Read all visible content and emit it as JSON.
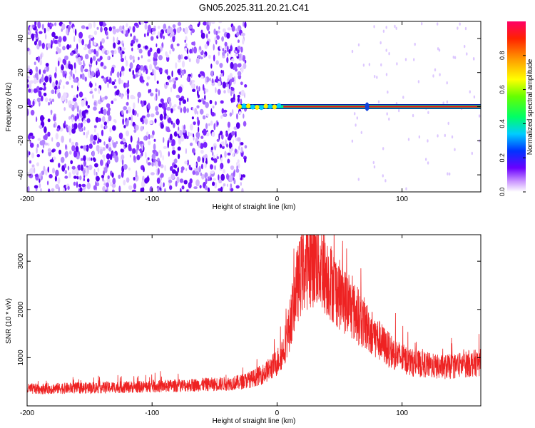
{
  "figure": {
    "title": "GN05.2025.311.20.21.C41"
  },
  "chart_data": [
    {
      "type": "heatmap",
      "xlabel": "Height of straight line (km)",
      "ylabel": "Frequency (Hz)",
      "xlim": [
        -200,
        163
      ],
      "ylim": [
        -50,
        50
      ],
      "xticks": [
        -200,
        -100,
        0,
        100
      ],
      "xtick_labels": [
        "-200",
        "-100",
        "0",
        "100"
      ],
      "yticks": [
        -40,
        -20,
        0,
        20,
        40
      ],
      "ytick_labels": [
        "-40",
        "-20",
        "0",
        "20",
        "40"
      ],
      "grid": false,
      "colorbar": {
        "label": "Normalized spectral amplitude",
        "range": [
          0,
          1
        ],
        "ticks": [
          0.0,
          0.2,
          0.4,
          0.6,
          0.8
        ],
        "tick_labels": [
          "0.0",
          "0.2",
          "0.4",
          "0.6",
          "0.8"
        ]
      },
      "features": [
        {
          "description": "scattered low-amplitude noise",
          "x_range": [
            -200,
            -30
          ],
          "freq_range": [
            -50,
            50
          ],
          "amplitude": 0.15
        },
        {
          "description": "narrow line near 0 Hz",
          "x_range": [
            -30,
            163
          ],
          "freq": 0,
          "amplitude": 0.9
        }
      ]
    },
    {
      "type": "line",
      "xlabel": "Height of straight line (km)",
      "ylabel": "SNR (10 * v/v)",
      "xlim": [
        -200,
        163
      ],
      "ylim": [
        0,
        3550
      ],
      "xticks": [
        -200,
        -100,
        0,
        100
      ],
      "xtick_labels": [
        "-200",
        "-100",
        "0",
        "100"
      ],
      "yticks": [
        1000,
        2000,
        3000
      ],
      "ytick_labels": [
        "1000",
        "2000",
        "3000"
      ],
      "grid": false,
      "series": [
        {
          "color": "#ee2222",
          "x": [
            -200,
            -180,
            -160,
            -140,
            -120,
            -100,
            -80,
            -60,
            -40,
            -30,
            -20,
            -10,
            0,
            5,
            10,
            15,
            20,
            25,
            30,
            35,
            40,
            45,
            50,
            60,
            70,
            80,
            90,
            100,
            110,
            120,
            130,
            140,
            150,
            163
          ],
          "y": [
            350,
            360,
            370,
            380,
            390,
            400,
            420,
            440,
            460,
            490,
            560,
            680,
            900,
            1150,
            1650,
            2400,
            2800,
            2950,
            3000,
            2900,
            2700,
            2500,
            2300,
            2000,
            1700,
            1400,
            1150,
            980,
            880,
            850,
            800,
            820,
            860,
            900
          ]
        }
      ]
    }
  ]
}
